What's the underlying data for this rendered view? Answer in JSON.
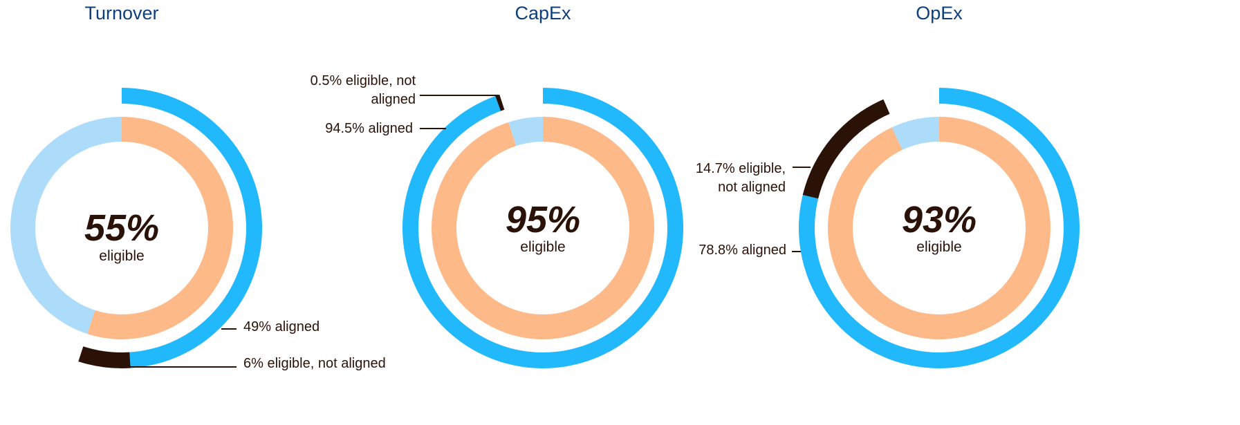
{
  "chart_data": [
    {
      "type": "donut",
      "title": "Turnover",
      "center_label": "eligible",
      "inner": {
        "values": [
          55,
          45
        ],
        "value_labels": [
          "55%",
          null
        ],
        "colors": [
          "#fdb988",
          "#addcfa"
        ]
      },
      "outer": {
        "values": [
          49,
          6
        ],
        "value_labels": [
          "49% aligned",
          "6% eligible, not aligned"
        ],
        "colors": [
          "#21b8fc",
          "#2a1206"
        ]
      }
    },
    {
      "type": "donut",
      "title": "CapEx",
      "center_label": "eligible",
      "inner": {
        "values": [
          95,
          5
        ],
        "value_labels": [
          "95%",
          null
        ],
        "colors": [
          "#fdb988",
          "#addcfa"
        ]
      },
      "outer": {
        "values": [
          94.5,
          0.5
        ],
        "value_labels": [
          "94.5% aligned",
          "0.5% eligible, not aligned"
        ],
        "colors": [
          "#21b8fc",
          "#2a1206"
        ]
      }
    },
    {
      "type": "donut",
      "title": "OpEx",
      "center_label": "eligible",
      "inner": {
        "values": [
          93,
          7
        ],
        "value_labels": [
          "93%",
          null
        ],
        "colors": [
          "#fdb988",
          "#addcfa"
        ]
      },
      "outer": {
        "values": [
          78.8,
          14.7
        ],
        "value_labels": [
          "78.8% aligned",
          "14.7% eligible, not aligned"
        ],
        "colors": [
          "#21b8fc",
          "#2a1206"
        ]
      }
    }
  ]
}
